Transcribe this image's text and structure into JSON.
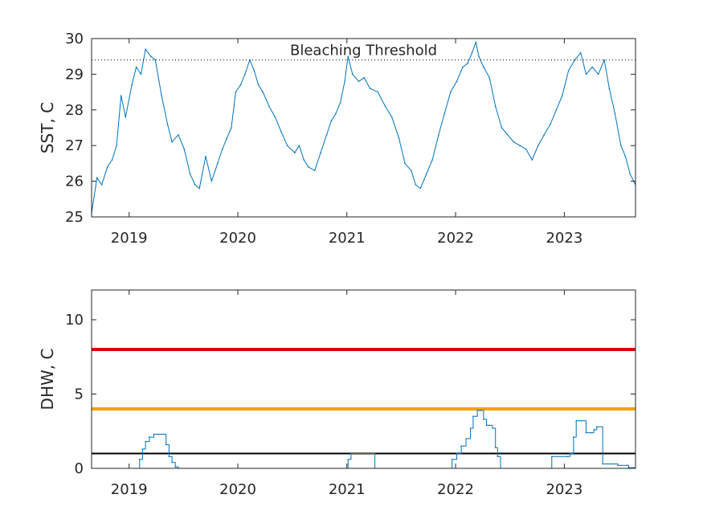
{
  "chart_data": [
    {
      "type": "line",
      "ylabel": "SST, C",
      "xlim": [
        "2018-08-28",
        "2023-08-28"
      ],
      "ylim": [
        25,
        30
      ],
      "yticks": [
        25,
        26,
        27,
        28,
        29,
        30
      ],
      "ytick_labels": [
        "25",
        "26",
        "27",
        "28",
        "29",
        "30"
      ],
      "xticks": [
        "2019-01-01",
        "2020-01-01",
        "2021-01-01",
        "2022-01-01",
        "2023-01-01"
      ],
      "xtick_labels": [
        "2019",
        "2020",
        "2021",
        "2022",
        "2023"
      ],
      "grid": false,
      "line_color": "#0072BD",
      "threshold": {
        "label": "Bleaching Threshold",
        "value": 29.4,
        "style": "dotted",
        "color": "#000000"
      },
      "series": [
        {
          "x": [
            "2018-08-28",
            "2018-09-15",
            "2018-10-01",
            "2018-10-20",
            "2018-11-05",
            "2018-11-20",
            "2018-12-05",
            "2018-12-20",
            "2019-01-10",
            "2019-01-25",
            "2019-02-10",
            "2019-02-25",
            "2019-03-15",
            "2019-03-30",
            "2019-04-20",
            "2019-05-10",
            "2019-05-25",
            "2019-06-15",
            "2019-07-05",
            "2019-07-25",
            "2019-08-10",
            "2019-08-25",
            "2019-09-15",
            "2019-10-05",
            "2019-10-25",
            "2019-11-10",
            "2019-11-25",
            "2019-12-10",
            "2019-12-25",
            "2020-01-10",
            "2020-01-25",
            "2020-02-10",
            "2020-02-25",
            "2020-03-10",
            "2020-03-25",
            "2020-04-15",
            "2020-05-05",
            "2020-05-25",
            "2020-06-15",
            "2020-07-10",
            "2020-07-25",
            "2020-08-10",
            "2020-08-25",
            "2020-09-15",
            "2020-10-05",
            "2020-10-25",
            "2020-11-10",
            "2020-11-25",
            "2020-12-10",
            "2020-12-25",
            "2021-01-05",
            "2021-01-20",
            "2021-02-10",
            "2021-02-28",
            "2021-03-20",
            "2021-04-15",
            "2021-05-10",
            "2021-06-01",
            "2021-06-25",
            "2021-07-15",
            "2021-08-05",
            "2021-08-20",
            "2021-09-05",
            "2021-09-25",
            "2021-10-15",
            "2021-11-05",
            "2021-11-25",
            "2021-12-15",
            "2022-01-05",
            "2022-01-25",
            "2022-02-10",
            "2022-02-25",
            "2022-03-10",
            "2022-03-20",
            "2022-04-05",
            "2022-04-25",
            "2022-05-15",
            "2022-06-05",
            "2022-06-25",
            "2022-07-15",
            "2022-08-05",
            "2022-08-25",
            "2022-09-15",
            "2022-10-05",
            "2022-10-25",
            "2022-11-15",
            "2022-12-05",
            "2022-12-25",
            "2023-01-15",
            "2023-02-05",
            "2023-02-25",
            "2023-03-15",
            "2023-04-05",
            "2023-04-25",
            "2023-05-15",
            "2023-06-01",
            "2023-06-20",
            "2023-07-10",
            "2023-07-25",
            "2023-08-10",
            "2023-08-28"
          ],
          "values": [
            25.1,
            26.1,
            25.9,
            26.4,
            26.6,
            27.0,
            28.4,
            27.8,
            28.7,
            29.2,
            29.0,
            29.7,
            29.5,
            29.4,
            28.4,
            27.6,
            27.1,
            27.3,
            26.9,
            26.2,
            25.9,
            25.8,
            26.7,
            26.0,
            26.5,
            26.9,
            27.2,
            27.5,
            28.5,
            28.7,
            29.0,
            29.4,
            29.1,
            28.7,
            28.5,
            28.1,
            27.8,
            27.4,
            27.0,
            26.8,
            27.0,
            26.6,
            26.4,
            26.3,
            26.8,
            27.3,
            27.7,
            27.9,
            28.2,
            28.8,
            29.5,
            29.0,
            28.8,
            28.9,
            28.6,
            28.5,
            28.1,
            27.8,
            27.2,
            26.5,
            26.3,
            25.9,
            25.8,
            26.2,
            26.6,
            27.3,
            27.9,
            28.5,
            28.8,
            29.2,
            29.3,
            29.6,
            29.9,
            29.5,
            29.2,
            28.9,
            28.1,
            27.5,
            27.3,
            27.1,
            27.0,
            26.9,
            26.6,
            27.0,
            27.3,
            27.6,
            28.0,
            28.4,
            29.1,
            29.4,
            29.6,
            29.0,
            29.2,
            29.0,
            29.4,
            28.6,
            27.9,
            27.0,
            26.7,
            26.2,
            25.9
          ]
        }
      ]
    },
    {
      "type": "line",
      "ylabel": "DHW, C",
      "xlim": [
        "2018-08-28",
        "2023-08-28"
      ],
      "ylim": [
        0,
        12
      ],
      "yticks": [
        0,
        5,
        10
      ],
      "ytick_labels": [
        "0",
        "5",
        "10"
      ],
      "xticks": [
        "2019-01-01",
        "2020-01-01",
        "2021-01-01",
        "2022-01-01",
        "2023-01-01"
      ],
      "xtick_labels": [
        "2019",
        "2020",
        "2021",
        "2022",
        "2023"
      ],
      "grid": false,
      "line_color": "#0072BD",
      "reference_lines": [
        {
          "value": 8,
          "color": "#E00000"
        },
        {
          "value": 4,
          "color": "#F2A200"
        },
        {
          "value": 1,
          "color": "#000000"
        }
      ],
      "series": [
        {
          "x": [
            "2018-08-28",
            "2019-01-25",
            "2019-02-05",
            "2019-02-15",
            "2019-02-25",
            "2019-03-10",
            "2019-03-25",
            "2019-04-10",
            "2019-04-25",
            "2019-05-05",
            "2019-05-15",
            "2019-05-25",
            "2019-06-05",
            "2019-06-15",
            "2020-12-25",
            "2021-01-05",
            "2021-01-15",
            "2021-03-31",
            "2021-04-05",
            "2021-12-10",
            "2021-12-20",
            "2022-01-05",
            "2022-01-20",
            "2022-02-05",
            "2022-02-20",
            "2022-03-01",
            "2022-03-15",
            "2022-03-25",
            "2022-04-05",
            "2022-04-15",
            "2022-04-25",
            "2022-05-05",
            "2022-05-15",
            "2022-05-22",
            "2022-06-01",
            "2022-11-15",
            "2022-11-20",
            "2023-01-10",
            "2023-01-20",
            "2023-02-01",
            "2023-02-10",
            "2023-02-25",
            "2023-03-15",
            "2023-03-31",
            "2023-04-10",
            "2023-04-20",
            "2023-05-10",
            "2023-06-20",
            "2023-06-30",
            "2023-07-30",
            "2023-08-05",
            "2023-08-28"
          ],
          "values": [
            0,
            0,
            0.6,
            1.3,
            1.8,
            2.1,
            2.3,
            2.3,
            2.3,
            1.6,
            0.8,
            0.4,
            0.1,
            0,
            0,
            0.6,
            1.0,
            1.0,
            0,
            0,
            0.6,
            1.0,
            1.5,
            2.0,
            2.7,
            3.5,
            3.9,
            3.9,
            3.3,
            2.9,
            2.9,
            2.7,
            1.4,
            0.8,
            0,
            0,
            0.8,
            0.8,
            1.0,
            2.1,
            3.2,
            3.2,
            2.4,
            2.4,
            2.6,
            2.8,
            0.3,
            0.3,
            0.2,
            0.2,
            0.05,
            0.05
          ]
        }
      ]
    }
  ]
}
